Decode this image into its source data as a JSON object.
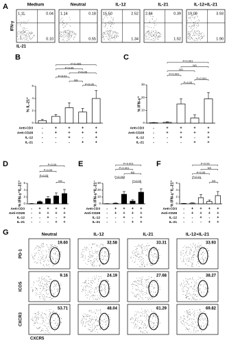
{
  "chart_data": [
    {
      "type": "flow",
      "panel": "A",
      "x_label": "IL-21",
      "y_label": "IFN-γ",
      "samples": [
        {
          "name": "Medium",
          "values": [
            1.11,
            0.04,
            0.1
          ],
          "value_labels": [
            "1.11",
            "0.04",
            "0.10"
          ]
        },
        {
          "name": "Neutral",
          "values": [
            1.14,
            0.18,
            0.55
          ],
          "value_labels": [
            "1.14",
            "0.18",
            "0.55"
          ]
        },
        {
          "name": "IL-12",
          "values": [
            15.5,
            2.52,
            1.34
          ],
          "value_labels": [
            "15.50",
            "2.52",
            "1.34"
          ]
        },
        {
          "name": "IL-21",
          "values": [
            2.84,
            0.39,
            1.52
          ],
          "value_labels": [
            "2.84",
            "0.39",
            "1.52"
          ]
        },
        {
          "name": "IL-12+IL-21",
          "values": [
            19.08,
            3.93,
            1.9
          ],
          "value_labels": [
            "19.08",
            "3.93",
            "1.90"
          ]
        }
      ]
    },
    {
      "type": "bar",
      "panel": "B",
      "y_label": "% IL-21⁺",
      "color": "#ffffff",
      "values": [
        0.4,
        1.1,
        2.5,
        1.8,
        4.0
      ],
      "errors": [
        0.2,
        0.3,
        0.8,
        0.6,
        1.3
      ],
      "ylim": [
        0,
        6
      ],
      "yticks": [
        0,
        2,
        4,
        6
      ],
      "conditions": [
        {
          "label": "Anti-CD3",
          "signs": [
            "-",
            "+",
            "+",
            "+",
            "+"
          ]
        },
        {
          "label": "Anti-CD28",
          "signs": [
            "-",
            "+",
            "+",
            "+",
            "+"
          ]
        },
        {
          "label": "IL-12",
          "signs": [
            "-",
            "-",
            "+",
            "-",
            "+"
          ]
        },
        {
          "label": "IL-21",
          "signs": [
            "-",
            "-",
            "-",
            "+",
            "+"
          ]
        }
      ],
      "annotations": [
        {
          "label": "P<0.005",
          "from": 1,
          "to": 4
        },
        {
          "label": "P<0.05",
          "from": 1,
          "to": 3
        },
        {
          "label": "P<0.05",
          "from": 2,
          "to": 4
        },
        {
          "label": "P<0.01",
          "from": 1,
          "to": 2
        },
        {
          "label": "NS",
          "from": 2,
          "to": 3
        },
        {
          "label": "P<0.05",
          "from": 3,
          "to": 4
        }
      ]
    },
    {
      "type": "bar",
      "panel": "C",
      "y_label": "% IFN-γ⁺",
      "color": "#ffffff",
      "values": [
        0.3,
        0.6,
        15,
        4,
        19
      ],
      "errors": [
        0.2,
        0.4,
        4,
        2.5,
        5
      ],
      "ylim": [
        0,
        30
      ],
      "yticks": [
        0,
        10,
        20,
        30
      ],
      "conditions": [
        {
          "label": "Anti-CD3",
          "signs": [
            "-",
            "+",
            "+",
            "+",
            "+"
          ]
        },
        {
          "label": "Anti-CD28",
          "signs": [
            "-",
            "+",
            "+",
            "+",
            "+"
          ]
        },
        {
          "label": "IL-12",
          "signs": [
            "-",
            "-",
            "+",
            "-",
            "+"
          ]
        },
        {
          "label": "IL-21",
          "signs": [
            "-",
            "-",
            "-",
            "+",
            "+"
          ]
        }
      ],
      "annotations": [
        {
          "label": "P<0.001",
          "from": 1,
          "to": 4
        },
        {
          "label": "NS",
          "from": 2,
          "to": 4
        },
        {
          "label": "NS",
          "from": 1,
          "to": 3
        },
        {
          "label": "P<0.001",
          "from": 1,
          "to": 2
        },
        {
          "label": "P<0.001",
          "from": 3,
          "to": 4
        },
        {
          "label": "P<0.05",
          "from": 2,
          "to": 3
        }
      ]
    },
    {
      "type": "bar",
      "panel": "D",
      "y_label": "% IFN-γ⁺IL-21⁺",
      "color": "#000000",
      "values": [
        0.05,
        0.6,
        1.5,
        2.3,
        3.0
      ],
      "errors": [
        0.05,
        0.2,
        0.6,
        0.9,
        1.2
      ],
      "ylim": [
        0,
        6
      ],
      "yticks": [
        0,
        2,
        4,
        6
      ],
      "conditions": [
        {
          "label": "Anti-CD3",
          "signs": [
            "-",
            "+",
            "+",
            "+",
            "+"
          ]
        },
        {
          "label": "Anti-CD28",
          "signs": [
            "-",
            "+",
            "+",
            "+",
            "+"
          ]
        },
        {
          "label": "IL-12",
          "signs": [
            "-",
            "-",
            "+",
            "-",
            "+"
          ]
        },
        {
          "label": "IL-21",
          "signs": [
            "-",
            "-",
            "-",
            "+",
            "+"
          ]
        }
      ],
      "annotations": [
        {
          "label": "P<0.05",
          "from": 1,
          "to": 4
        },
        {
          "label": "P<0.05",
          "from": 1,
          "to": 3
        },
        {
          "label": "P<0.05",
          "from": 1,
          "to": 2
        },
        {
          "label": "NS",
          "from": 3,
          "to": 4
        }
      ]
    },
    {
      "type": "bar",
      "panel": "E",
      "y_label": "% IFN-γ⁺IL-21⁻",
      "color": "#000000",
      "values": [
        0.2,
        0.8,
        14,
        4,
        17
      ],
      "errors": [
        0.2,
        0.5,
        4,
        2,
        5
      ],
      "ylim": [
        0,
        30
      ],
      "yticks": [
        0,
        10,
        20,
        30
      ],
      "conditions": [
        {
          "label": "Anti-CD3",
          "signs": [
            "-",
            "+",
            "+",
            "+",
            "+"
          ]
        },
        {
          "label": "Anti-CD28",
          "signs": [
            "-",
            "+",
            "+",
            "+",
            "+"
          ]
        },
        {
          "label": "IL-12",
          "signs": [
            "-",
            "-",
            "+",
            "-",
            "+"
          ]
        },
        {
          "label": "IL-21",
          "signs": [
            "-",
            "-",
            "-",
            "+",
            "+"
          ]
        }
      ],
      "annotations": [
        {
          "label": "P<0.001",
          "from": 1,
          "to": 4
        },
        {
          "label": "P<0.001",
          "from": 1,
          "to": 3
        },
        {
          "label": "NS",
          "from": 2,
          "to": 4
        },
        {
          "label": "P<0.005",
          "from": 1,
          "to": 2
        },
        {
          "label": "P<0.05",
          "from": 3,
          "to": 4
        }
      ]
    },
    {
      "type": "bar",
      "panel": "F",
      "y_label": "% IFN-γ⁻IL-21⁺",
      "color": "#ffffff",
      "values": [
        0.1,
        0.2,
        1.8,
        0.7,
        2.4
      ],
      "errors": [
        0.05,
        0.1,
        0.9,
        0.4,
        1.2
      ],
      "ylim": [
        0,
        6
      ],
      "yticks": [
        0,
        2,
        4,
        6
      ],
      "conditions": [
        {
          "label": "Anti-CD3",
          "signs": [
            "-",
            "+",
            "+",
            "+",
            "+"
          ]
        },
        {
          "label": "Anti-CD28",
          "signs": [
            "-",
            "+",
            "+",
            "+",
            "+"
          ]
        },
        {
          "label": "IL-12",
          "signs": [
            "-",
            "-",
            "+",
            "-",
            "+"
          ]
        },
        {
          "label": "IL-21",
          "signs": [
            "-",
            "-",
            "-",
            "+",
            "+"
          ]
        }
      ],
      "annotations": [
        {
          "label": "P<0.05",
          "from": 1,
          "to": 4
        },
        {
          "label": "NS",
          "from": 2,
          "to": 4
        },
        {
          "label": "P<0.05",
          "from": 1,
          "to": 3
        },
        {
          "label": "P<0.01",
          "from": 1,
          "to": 2
        },
        {
          "label": "NS",
          "from": 3,
          "to": 4
        }
      ]
    },
    {
      "type": "flow-grid",
      "panel": "G",
      "x_label": "CXCR5",
      "columns": [
        "Neutral",
        "IL-12",
        "IL-21",
        "IL-12+IL-21"
      ],
      "rows": [
        {
          "name": "PD-1",
          "values": [
            19.6,
            32.58,
            33.31,
            33.93
          ],
          "value_labels": [
            "19.60",
            "32.58",
            "33.31",
            "33.93"
          ]
        },
        {
          "name": "ICOS",
          "values": [
            9.16,
            24.19,
            27.68,
            38.27
          ],
          "value_labels": [
            "9.16",
            "24.19",
            "27.68",
            "38.27"
          ]
        },
        {
          "name": "CXCR3",
          "values": [
            53.71,
            48.04,
            61.29,
            69.82
          ],
          "value_labels": [
            "53.71",
            "48.04",
            "61.29",
            "69.82"
          ]
        }
      ]
    }
  ]
}
